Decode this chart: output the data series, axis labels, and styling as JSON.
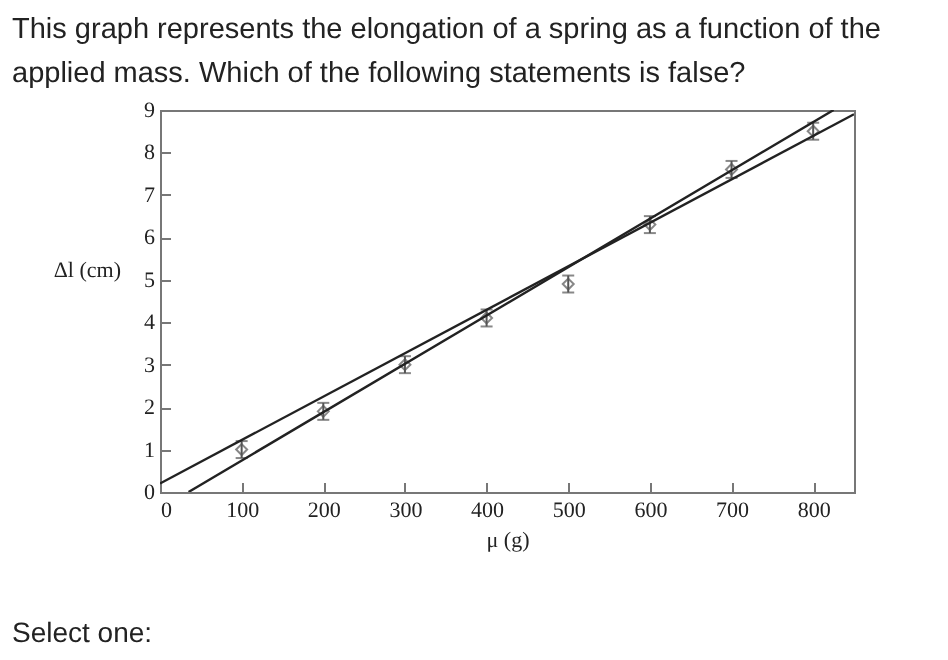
{
  "chart_data": {
    "type": "scatter",
    "title": "This graph represents the elongation of a spring as a function of the applied mass. Which of the following statements is false?",
    "xlabel": "μ (g)",
    "ylabel": "Δl (cm)",
    "xlim": [
      0,
      850
    ],
    "xticks": [
      0,
      100,
      200,
      300,
      400,
      500,
      600,
      700,
      800
    ],
    "ylim": [
      0,
      9
    ],
    "yticks": [
      0,
      1,
      2,
      3,
      4,
      5,
      6,
      7,
      8,
      9
    ],
    "grid": false,
    "marker": "diamond",
    "series": [
      {
        "color": "#555555",
        "x": [
          100,
          200,
          300,
          400,
          500,
          600,
          700,
          800
        ],
        "values": [
          1.0,
          1.9,
          3.0,
          4.1,
          4.9,
          6.3,
          7.6,
          8.5
        ],
        "errors": [
          0.2,
          0.2,
          0.2,
          0.2,
          0.2,
          0.2,
          0.2,
          0.2
        ]
      },
      {
        "type": "line",
        "color": "#222222",
        "marker": "none",
        "line_style": "solid",
        "x": [
          0,
          850
        ],
        "values": [
          0.2,
          8.9
        ]
      },
      {
        "type": "line",
        "color": "#222222",
        "marker": "none",
        "line_style": "solid",
        "x": [
          35,
          825
        ],
        "values": [
          0,
          9
        ]
      }
    ],
    "annotations": [
      "Select one:"
    ]
  }
}
